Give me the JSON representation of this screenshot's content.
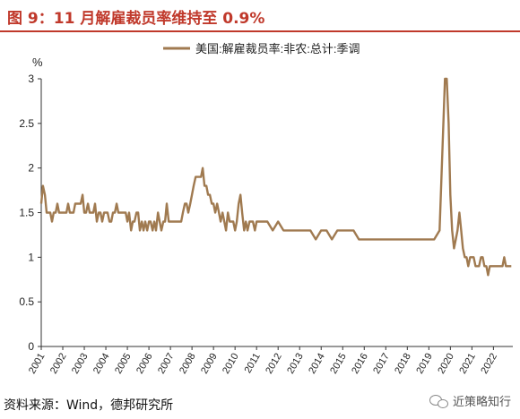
{
  "header": {
    "title": "图 9：11 月解雇裁员率维持至 0.9%"
  },
  "footer": {
    "source": "资料来源：Wind，德邦研究所",
    "watermark": "近策略知行"
  },
  "chart_data": {
    "type": "line",
    "ylabel": "%",
    "ylim": [
      0,
      3
    ],
    "yticks": [
      "0",
      "0.5",
      "1",
      "1.5",
      "2",
      "2.5",
      "3"
    ],
    "xlim": [
      2001,
      2022.9
    ],
    "xticks": [
      "2001",
      "2002",
      "2003",
      "2004",
      "2005",
      "2006",
      "2007",
      "2008",
      "2009",
      "2010",
      "2011",
      "2012",
      "2013",
      "2014",
      "2015",
      "2016",
      "2017",
      "2018",
      "2019",
      "2020",
      "2021",
      "2022"
    ],
    "legend_position": "top",
    "series": [
      {
        "name": "美国:解雇裁员率:非农:总计:季调",
        "color": "#a07a50",
        "x": [
          2001.0,
          2001.08,
          2001.17,
          2001.25,
          2001.33,
          2001.42,
          2001.5,
          2001.58,
          2001.67,
          2001.75,
          2001.83,
          2001.92,
          2002.0,
          2002.08,
          2002.17,
          2002.25,
          2002.33,
          2002.42,
          2002.5,
          2002.58,
          2002.67,
          2002.75,
          2002.83,
          2002.92,
          2003.0,
          2003.08,
          2003.17,
          2003.25,
          2003.33,
          2003.42,
          2003.5,
          2003.58,
          2003.67,
          2003.75,
          2003.83,
          2003.92,
          2004.0,
          2004.08,
          2004.17,
          2004.25,
          2004.33,
          2004.42,
          2004.5,
          2004.58,
          2004.67,
          2004.75,
          2004.83,
          2004.92,
          2005.0,
          2005.08,
          2005.17,
          2005.25,
          2005.33,
          2005.42,
          2005.5,
          2005.58,
          2005.67,
          2005.75,
          2005.83,
          2005.92,
          2006.0,
          2006.08,
          2006.17,
          2006.25,
          2006.33,
          2006.42,
          2006.5,
          2006.58,
          2006.67,
          2006.75,
          2006.83,
          2006.92,
          2007.0,
          2007.08,
          2007.17,
          2007.25,
          2007.33,
          2007.42,
          2007.5,
          2007.58,
          2007.67,
          2007.75,
          2007.83,
          2007.92,
          2008.0,
          2008.08,
          2008.17,
          2008.25,
          2008.33,
          2008.42,
          2008.5,
          2008.58,
          2008.67,
          2008.75,
          2008.83,
          2008.92,
          2009.0,
          2009.08,
          2009.17,
          2009.25,
          2009.33,
          2009.42,
          2009.5,
          2009.58,
          2009.67,
          2009.75,
          2009.83,
          2009.92,
          2010.0,
          2010.08,
          2010.17,
          2010.25,
          2010.33,
          2010.42,
          2010.5,
          2010.58,
          2010.67,
          2010.75,
          2010.83,
          2010.92,
          2011.0,
          2011.25,
          2011.5,
          2011.75,
          2012.0,
          2012.25,
          2012.5,
          2012.75,
          2013.0,
          2013.25,
          2013.5,
          2013.75,
          2014.0,
          2014.25,
          2014.5,
          2014.75,
          2015.0,
          2015.25,
          2015.5,
          2015.75,
          2016.0,
          2016.25,
          2016.5,
          2016.75,
          2017.0,
          2017.25,
          2017.5,
          2017.75,
          2018.0,
          2018.25,
          2018.5,
          2018.75,
          2019.0,
          2019.25,
          2019.5,
          2019.75,
          2019.83,
          2019.92,
          2020.0,
          2020.08,
          2020.17,
          2020.25,
          2020.33,
          2020.42,
          2020.5,
          2020.58,
          2020.67,
          2020.75,
          2020.83,
          2020.92,
          2021.0,
          2021.08,
          2021.17,
          2021.25,
          2021.33,
          2021.42,
          2021.5,
          2021.58,
          2021.67,
          2021.75,
          2021.83,
          2021.92,
          2022.0,
          2022.08,
          2022.17,
          2022.25,
          2022.33,
          2022.42,
          2022.5,
          2022.58,
          2022.67,
          2022.75,
          2022.83
        ],
        "y": [
          1.6,
          1.8,
          1.7,
          1.5,
          1.5,
          1.5,
          1.4,
          1.5,
          1.5,
          1.6,
          1.5,
          1.5,
          1.5,
          1.5,
          1.5,
          1.6,
          1.5,
          1.5,
          1.5,
          1.6,
          1.6,
          1.6,
          1.6,
          1.7,
          1.5,
          1.5,
          1.6,
          1.5,
          1.5,
          1.5,
          1.6,
          1.4,
          1.5,
          1.5,
          1.4,
          1.5,
          1.5,
          1.5,
          1.4,
          1.4,
          1.5,
          1.5,
          1.6,
          1.5,
          1.5,
          1.5,
          1.5,
          1.5,
          1.4,
          1.5,
          1.3,
          1.4,
          1.4,
          1.5,
          1.5,
          1.3,
          1.4,
          1.3,
          1.4,
          1.3,
          1.4,
          1.4,
          1.3,
          1.4,
          1.3,
          1.5,
          1.4,
          1.3,
          1.4,
          1.4,
          1.6,
          1.4,
          1.4,
          1.4,
          1.4,
          1.4,
          1.4,
          1.4,
          1.4,
          1.5,
          1.6,
          1.6,
          1.5,
          1.6,
          1.7,
          1.8,
          1.9,
          1.9,
          1.9,
          1.9,
          2.0,
          1.8,
          1.8,
          1.7,
          1.7,
          1.6,
          1.6,
          1.5,
          1.6,
          1.5,
          1.4,
          1.5,
          1.4,
          1.3,
          1.5,
          1.4,
          1.4,
          1.4,
          1.3,
          1.4,
          1.6,
          1.7,
          1.5,
          1.3,
          1.4,
          1.3,
          1.4,
          1.4,
          1.4,
          1.3,
          1.4,
          1.4,
          1.4,
          1.3,
          1.4,
          1.3,
          1.3,
          1.3,
          1.3,
          1.3,
          1.3,
          1.2,
          1.3,
          1.3,
          1.2,
          1.3,
          1.3,
          1.3,
          1.3,
          1.2,
          1.2,
          1.2,
          1.2,
          1.2,
          1.2,
          1.2,
          1.2,
          1.2,
          1.2,
          1.2,
          1.2,
          1.2,
          1.2,
          1.2,
          1.3,
          3.1,
          3.1,
          2.5,
          1.7,
          1.3,
          1.1,
          1.2,
          1.3,
          1.5,
          1.3,
          1.1,
          1.0,
          1.0,
          0.9,
          1.0,
          1.0,
          1.0,
          0.9,
          0.9,
          0.9,
          1.0,
          1.0,
          0.9,
          0.9,
          0.8,
          0.9,
          0.9,
          0.9,
          0.9,
          0.9,
          0.9,
          0.9,
          0.9,
          1.0,
          0.9,
          0.9,
          0.9,
          0.9
        ]
      }
    ]
  }
}
